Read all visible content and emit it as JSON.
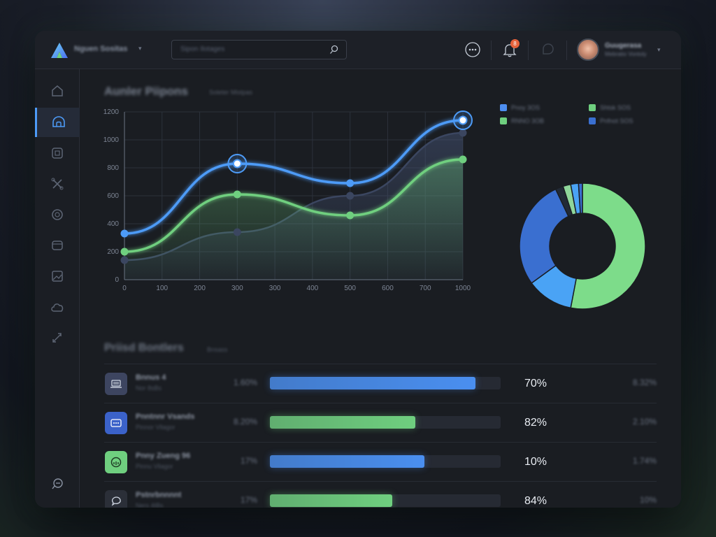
{
  "header": {
    "brand": "Nguen Sositas",
    "search_placeholder": "Sipon Ilotages",
    "notification_count": "8",
    "user_name": "Guugerasa",
    "user_subtitle": "Mebratio Vontoly"
  },
  "sidebar": {
    "items": [
      {
        "name": "home",
        "icon": "home-icon"
      },
      {
        "name": "dashboard",
        "icon": "dome-icon"
      },
      {
        "name": "grid",
        "icon": "grid-icon"
      },
      {
        "name": "tools",
        "icon": "cross-icon"
      },
      {
        "name": "settings",
        "icon": "gear-icon"
      },
      {
        "name": "cards",
        "icon": "card-icon"
      },
      {
        "name": "images",
        "icon": "image-icon"
      },
      {
        "name": "cloud",
        "icon": "cloud-icon"
      },
      {
        "name": "link",
        "icon": "link-icon"
      }
    ],
    "active_index": 1,
    "bottom_icon": "chat-icon"
  },
  "main": {
    "chart_title": "Aunler Piipons",
    "chart_subtitle": "Soleter Mistpas",
    "section_title": "Priisd Bontlers",
    "section_subtitle": "Bnsass",
    "rows": [
      {
        "name": "Bnnus 4",
        "sub": "Nor 8sBs",
        "pct": "1.60%",
        "fill": 0.89,
        "color": "#4a8ff0",
        "value": "70%",
        "right": "8.32%",
        "icon": "laptop-icon",
        "icon_bg": "#3d4560"
      },
      {
        "name": "Pnntnnr Vsands",
        "sub": "Pinnor Vllagor",
        "pct": "8.20%",
        "fill": 0.63,
        "color": "#6fcf7f",
        "value": "82%",
        "right": "2.10%",
        "icon": "dots-chat-icon",
        "icon_bg": "#3b62c9"
      },
      {
        "name": "Pnny Zueng 96",
        "sub": "Pinnu Vllagor",
        "pct": "17%",
        "fill": 0.67,
        "color": "#4a8ff0",
        "value": "10%",
        "right": "1.74%",
        "icon": "refresh-icon",
        "icon_bg": "#6fcf7f"
      },
      {
        "name": "Pstnrbnnnnt",
        "sub": "Ners 4tBs",
        "pct": "17%",
        "fill": 0.53,
        "color": "#6fcf7f",
        "value": "84%",
        "right": "10%",
        "icon": "speech-icon",
        "icon_bg": "#2b2f38"
      }
    ]
  },
  "chart_data": [
    {
      "type": "area",
      "title": "Aunler Piipons",
      "x_ticks": [
        "0",
        "100",
        "200",
        "300",
        "300",
        "400",
        "500",
        "600",
        "700",
        "1000"
      ],
      "ylim": [
        0,
        1200
      ],
      "y_ticks": [
        0,
        200,
        400,
        600,
        800,
        1000,
        1200
      ],
      "grid": true,
      "x_positions": [
        0,
        1,
        2,
        3,
        4,
        5,
        6,
        7,
        8,
        9
      ],
      "series": [
        {
          "color": "#4d9bf7",
          "points": [
            [
              0,
              330
            ],
            [
              3,
              830
            ],
            [
              6,
              690
            ],
            [
              9,
              1140
            ]
          ],
          "highlight": [
            1,
            3
          ]
        },
        {
          "color": "#6fcf7f",
          "points": [
            [
              0,
              200
            ],
            [
              3,
              610
            ],
            [
              6,
              460
            ],
            [
              9,
              860
            ]
          ]
        },
        {
          "color": "#3b4660",
          "points": [
            [
              0,
              140
            ],
            [
              3,
              340
            ],
            [
              6,
              600
            ],
            [
              9,
              1050
            ]
          ]
        }
      ]
    },
    {
      "type": "pie",
      "donut": true,
      "slices": [
        {
          "value": 53,
          "color": "#7ddc8a"
        },
        {
          "value": 12,
          "color": "#4aa3f5"
        },
        {
          "value": 28,
          "color": "#3a6fd0"
        },
        {
          "value": 2,
          "color": "#222a36"
        },
        {
          "value": 2,
          "color": "#8fd69a"
        },
        {
          "value": 2,
          "color": "#4aa3f5"
        },
        {
          "value": 1,
          "color": "#3a6fd0"
        }
      ],
      "legend": [
        {
          "label": "Pnoy 3OS",
          "color": "#4d8ef0"
        },
        {
          "label": "RNNO 3OB",
          "color": "#6fcf7f"
        },
        {
          "label": "Shtsk SOS",
          "color": "#6fcf7f"
        },
        {
          "label": "Pnfnot SOS",
          "color": "#3a6fd0"
        }
      ]
    }
  ]
}
